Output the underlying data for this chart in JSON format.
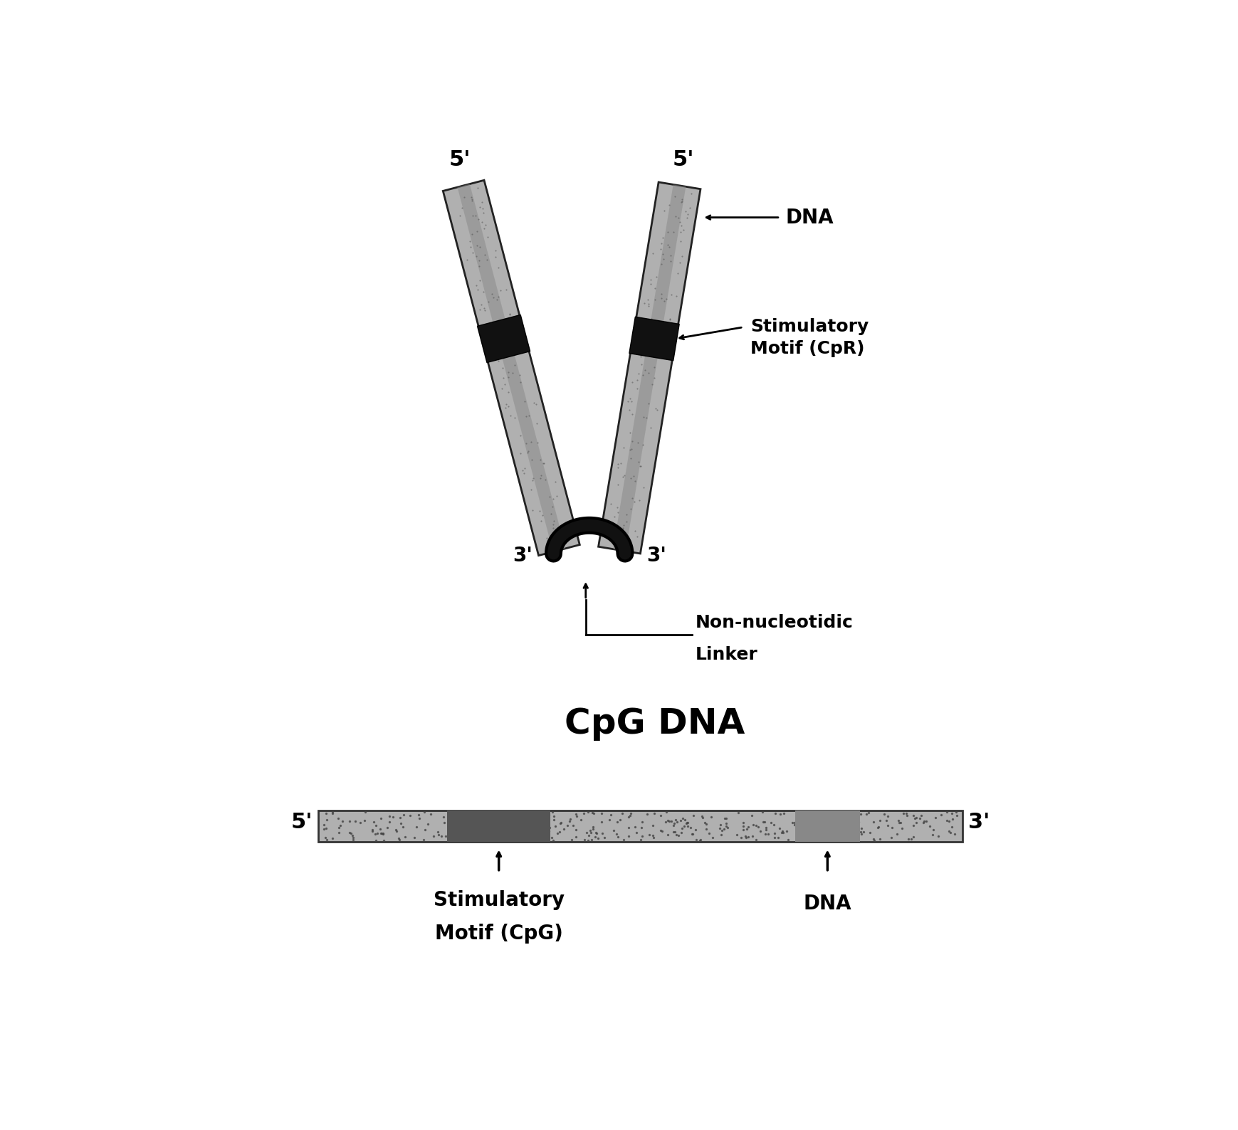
{
  "background_color": "#ffffff",
  "fig_width": 17.4,
  "fig_height": 15.88,
  "label_5prime_left": "5'",
  "label_5prime_right": "5'",
  "label_3prime_left": "3'",
  "label_3prime_right": "3'",
  "label_dna": "DNA",
  "label_stimulatory_cpr": "Stimulatory\nMotif (CpR)",
  "label_linker_line1": "Non-nucleotidic",
  "label_linker_line2": "Linker",
  "cpg_title": "CpG DNA",
  "label_5prime_bar": "5'",
  "label_3prime_bar": "3'",
  "label_stimulatory_cpg_line1": "Stimulatory",
  "label_stimulatory_cpg_line2": "Motif (CpG)",
  "label_dna_cpg": "DNA",
  "text_color": "#000000",
  "strand_gray": "#b0b0b0",
  "strand_edge": "#222222",
  "motif_dark": "#111111"
}
